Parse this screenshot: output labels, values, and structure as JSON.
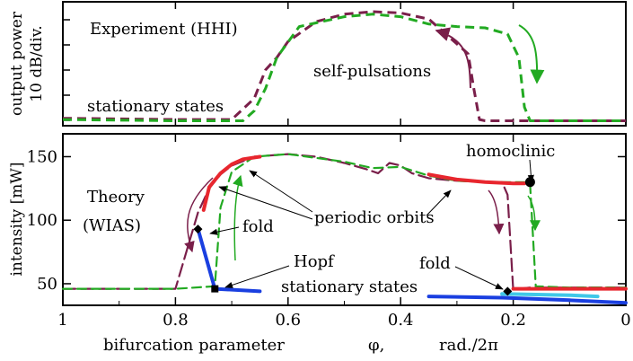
{
  "chart_data": [
    {
      "type": "line",
      "panel": "top",
      "ylabel_lines": [
        "output power",
        "10 dB/div."
      ],
      "title": "Experiment (HHI)",
      "annotations": [
        "self-pulsations",
        "stationary states"
      ],
      "series": [
        {
          "name": "",
          "color": "#7a1f4a",
          "style": "dashed",
          "x": [
            1.0,
            0.8,
            0.7,
            0.66,
            0.64,
            0.62,
            0.6,
            0.55,
            0.5,
            0.45,
            0.4,
            0.35,
            0.3,
            0.28,
            0.27,
            0.26,
            0.25,
            0.2,
            0.1,
            0.0
          ],
          "y": [
            0.06,
            0.05,
            0.05,
            0.22,
            0.45,
            0.55,
            0.68,
            0.84,
            0.9,
            0.92,
            0.91,
            0.86,
            0.66,
            0.58,
            0.3,
            0.05,
            0.04,
            0.04,
            0.04,
            0.04
          ]
        },
        {
          "name": "",
          "color": "#22aa22",
          "style": "dashed",
          "x": [
            1.0,
            0.8,
            0.68,
            0.66,
            0.64,
            0.62,
            0.58,
            0.5,
            0.45,
            0.4,
            0.35,
            0.3,
            0.25,
            0.21,
            0.19,
            0.18,
            0.17,
            0.1,
            0.0
          ],
          "y": [
            0.05,
            0.04,
            0.04,
            0.12,
            0.3,
            0.55,
            0.8,
            0.88,
            0.9,
            0.88,
            0.82,
            0.8,
            0.79,
            0.74,
            0.55,
            0.15,
            0.04,
            0.04,
            0.04
          ]
        }
      ]
    },
    {
      "type": "line",
      "panel": "bottom",
      "xlabel": "bifurcation parameter",
      "xlabel_symbol": "φ,",
      "xlabel_unit": "rad./2π",
      "ylabel": "intensity [mW]",
      "xlim": [
        1,
        0
      ],
      "ylim": [
        33,
        168
      ],
      "xticks": [
        1,
        0.8,
        0.6,
        0.4,
        0.2,
        0
      ],
      "xtick_labels": [
        "1",
        "0.8",
        "0.6",
        "0.4",
        "0.2",
        "0"
      ],
      "yticks": [
        50,
        100,
        150
      ],
      "ytick_labels": [
        "50",
        "100",
        "150"
      ],
      "annotations": [
        "Theory",
        "(WIAS)",
        "fold",
        "periodic orbits",
        "homoclinic",
        "Hopf",
        "stationary states",
        "fold"
      ],
      "series": [
        {
          "name": "",
          "color": "#7a1f4a",
          "style": "long-dash",
          "x": [
            1.0,
            0.9,
            0.8,
            0.76,
            0.74,
            0.72,
            0.7,
            0.66,
            0.6,
            0.55,
            0.5,
            0.46,
            0.44,
            0.42,
            0.4,
            0.38,
            0.35,
            0.3,
            0.25,
            0.22,
            0.21,
            0.2,
            0.19,
            0.17,
            0.1,
            0.0
          ],
          "y": [
            46,
            46,
            46,
            106,
            125,
            136,
            143,
            150,
            152,
            150,
            145,
            140,
            137,
            145,
            143,
            137,
            133,
            131,
            130,
            130,
            120,
            45,
            46,
            47,
            47,
            47
          ]
        },
        {
          "name": "",
          "color": "#22aa22",
          "style": "dashed",
          "x": [
            1.0,
            0.9,
            0.8,
            0.73,
            0.72,
            0.7,
            0.66,
            0.6,
            0.5,
            0.45,
            0.4,
            0.35,
            0.3,
            0.25,
            0.2,
            0.18,
            0.17,
            0.16,
            0.1,
            0.0
          ],
          "y": [
            46,
            46,
            46,
            48,
            110,
            138,
            150,
            152,
            146,
            141,
            142,
            135,
            131,
            130,
            130,
            130,
            128,
            48,
            47,
            47
          ]
        },
        {
          "name": "",
          "color": "#e8262e",
          "style": "solid",
          "x": [
            0.75,
            0.74,
            0.72,
            0.7,
            0.68,
            0.65
          ],
          "y": [
            108,
            126,
            137,
            144,
            148,
            150
          ]
        },
        {
          "name": "",
          "color": "#e8262e",
          "style": "solid",
          "x": [
            0.35,
            0.3,
            0.25,
            0.2,
            0.18
          ],
          "y": [
            136,
            132,
            130,
            129,
            129
          ]
        },
        {
          "name": "",
          "color": "#e8262e",
          "style": "solid",
          "x": [
            0.2,
            0.1,
            0.0
          ],
          "y": [
            46,
            46,
            46
          ]
        },
        {
          "name": "",
          "color": "#1a3fe0",
          "style": "solid",
          "x": [
            0.76,
            0.73
          ],
          "y": [
            93,
            46
          ]
        },
        {
          "name": "",
          "color": "#1a3fe0",
          "style": "solid",
          "x": [
            0.73,
            0.65
          ],
          "y": [
            46,
            44
          ]
        },
        {
          "name": "",
          "color": "#1a3fe0",
          "style": "solid",
          "x": [
            0.35,
            0.22,
            0.1,
            0.0
          ],
          "y": [
            40,
            39,
            37,
            35
          ]
        },
        {
          "name": "",
          "color": "#40c8e8",
          "style": "solid",
          "x": [
            0.22,
            0.1,
            0.05
          ],
          "y": [
            42,
            41,
            40
          ]
        }
      ],
      "markers": [
        {
          "label": "fold",
          "x": 0.76,
          "y": 93,
          "shape": "diamond"
        },
        {
          "label": "Hopf",
          "x": 0.73,
          "y": 46,
          "shape": "square"
        },
        {
          "label": "homoclinic",
          "x": 0.17,
          "y": 130,
          "shape": "circle"
        },
        {
          "label": "fold",
          "x": 0.21,
          "y": 44,
          "shape": "diamond"
        }
      ]
    }
  ]
}
